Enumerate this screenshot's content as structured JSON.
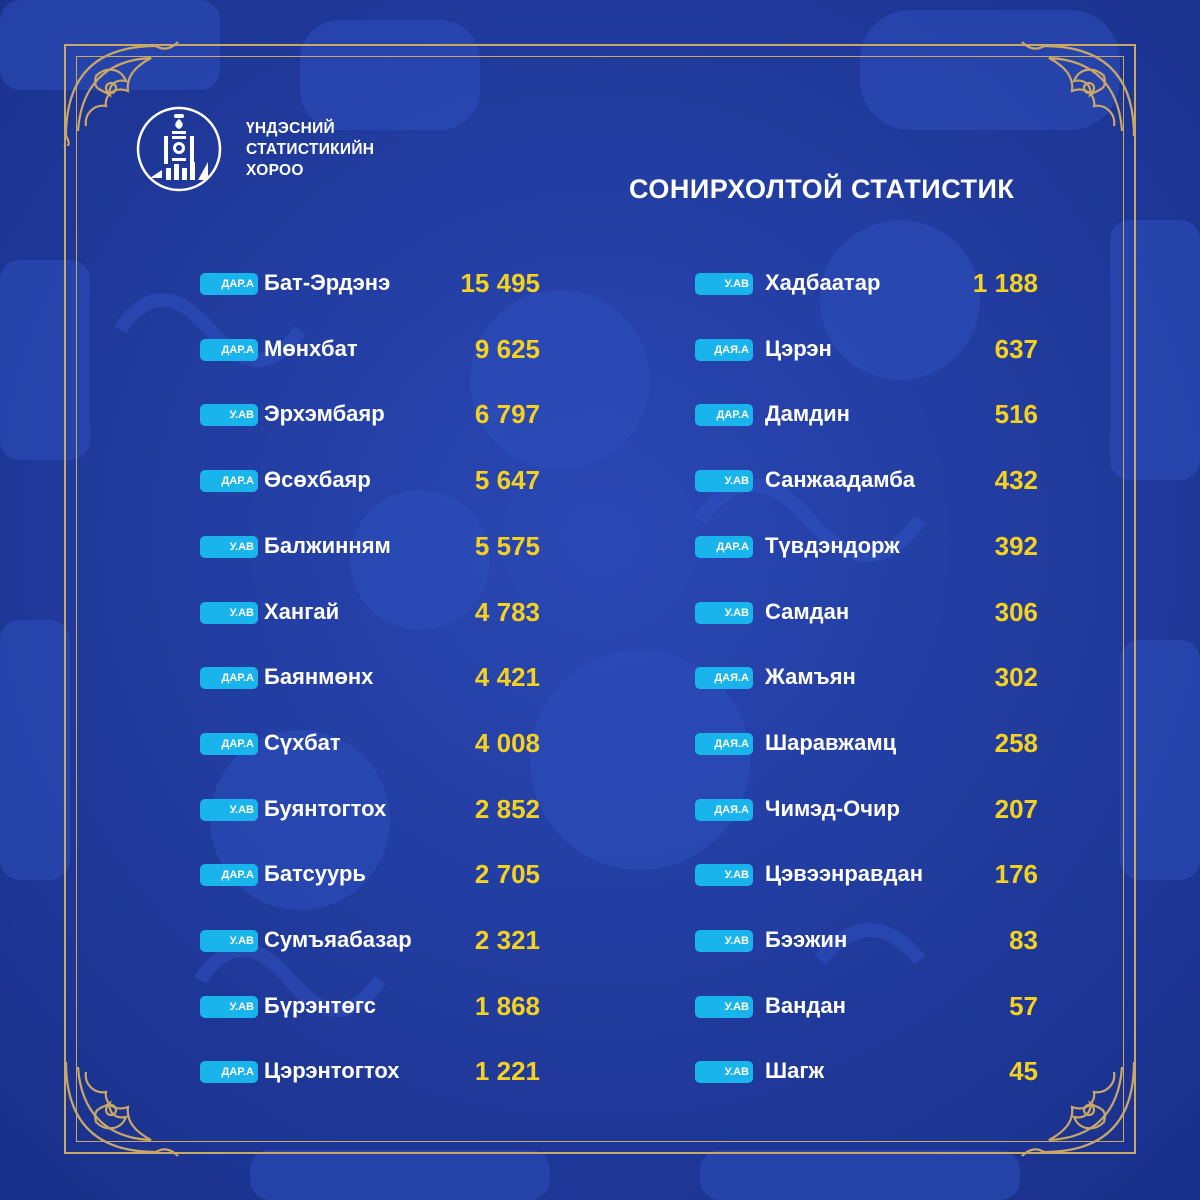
{
  "header": {
    "org_line1": "ҮНДЭСНИЙ",
    "org_line2": "СТАТИСТИКИЙН",
    "org_line3": "ХОРОО",
    "title": "СОНИРХОЛТОЙ СТАТИСТИК"
  },
  "colors": {
    "background": "#1f3a9e",
    "frame": "#c9a867",
    "badge": "#1ab4ec",
    "number": "#f5d21f"
  },
  "icons": {
    "logo": "soyombo-emblem-icon"
  },
  "left": [
    {
      "badge": "ДАР.А",
      "name": "Бат-Эрдэнэ",
      "value": "15 495"
    },
    {
      "badge": "ДАР.А",
      "name": "Мөнхбат",
      "value": "9 625"
    },
    {
      "badge": "У.АВ",
      "name": "Эрхэмбаяр",
      "value": "6 797"
    },
    {
      "badge": "ДАР.А",
      "name": "Өсөхбаяр",
      "value": "5 647"
    },
    {
      "badge": "У.АВ",
      "name": "Балжинням",
      "value": "5 575"
    },
    {
      "badge": "У.АВ",
      "name": "Хангай",
      "value": "4 783"
    },
    {
      "badge": "ДАР.А",
      "name": "Баянмөнх",
      "value": "4 421"
    },
    {
      "badge": "ДАР.А",
      "name": "Сүхбат",
      "value": "4 008"
    },
    {
      "badge": "У.АВ",
      "name": "Буянтогтох",
      "value": "2 852"
    },
    {
      "badge": "ДАР.А",
      "name": "Батсуурь",
      "value": "2 705"
    },
    {
      "badge": "У.АВ",
      "name": "Сумъяабазар",
      "value": "2 321"
    },
    {
      "badge": "У.АВ",
      "name": "Бүрэнтөгс",
      "value": "1 868"
    },
    {
      "badge": "ДАР.А",
      "name": "Цэрэнтогтох",
      "value": "1 221"
    }
  ],
  "right": [
    {
      "badge": "У.АВ",
      "name": "Хадбаатар",
      "value": "1 188"
    },
    {
      "badge": "ДАЯ.А",
      "name": "Цэрэн",
      "value": "637"
    },
    {
      "badge": "ДАР.А",
      "name": "Дамдин",
      "value": "516"
    },
    {
      "badge": "У.АВ",
      "name": "Санжаадамба",
      "value": "432"
    },
    {
      "badge": "ДАР.А",
      "name": "Түвдэндорж",
      "value": "392"
    },
    {
      "badge": "У.АВ",
      "name": "Самдан",
      "value": "306"
    },
    {
      "badge": "ДАЯ.А",
      "name": "Жамъян",
      "value": "302"
    },
    {
      "badge": "ДАЯ.А",
      "name": "Шаравжамц",
      "value": "258"
    },
    {
      "badge": "ДАЯ.А",
      "name": "Чимэд-Очир",
      "value": "207"
    },
    {
      "badge": "У.АВ",
      "name": "Цэвээнравдан",
      "value": "176"
    },
    {
      "badge": "У.АВ",
      "name": "Бээжин",
      "value": "83"
    },
    {
      "badge": "У.АВ",
      "name": "Вандан",
      "value": "57"
    },
    {
      "badge": "У.АВ",
      "name": "Шагж",
      "value": "45"
    }
  ]
}
